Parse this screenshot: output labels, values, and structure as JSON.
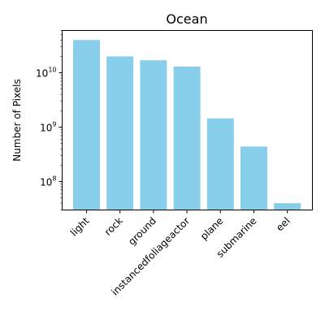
{
  "chart_data": {
    "type": "bar",
    "title": "Ocean",
    "xlabel": "",
    "ylabel": "Number of Pixels",
    "yscale": "log",
    "ylim": [
      30000000,
      60000000000
    ],
    "grid": false,
    "legend": "none",
    "bar_color": "#87ceeb",
    "categories": [
      "light",
      "rock",
      "ground",
      "instancedfoliageactor",
      "plane",
      "submarine",
      "eel"
    ],
    "values": [
      40000000000,
      20000000000,
      17000000000,
      13000000000,
      1450000000,
      440000000,
      40000000
    ],
    "y_ticks": [
      {
        "value": 100000000,
        "base": "10",
        "exp": "8"
      },
      {
        "value": 1000000000,
        "base": "10",
        "exp": "9"
      },
      {
        "value": 10000000000,
        "base": "10",
        "exp": "10"
      }
    ]
  }
}
